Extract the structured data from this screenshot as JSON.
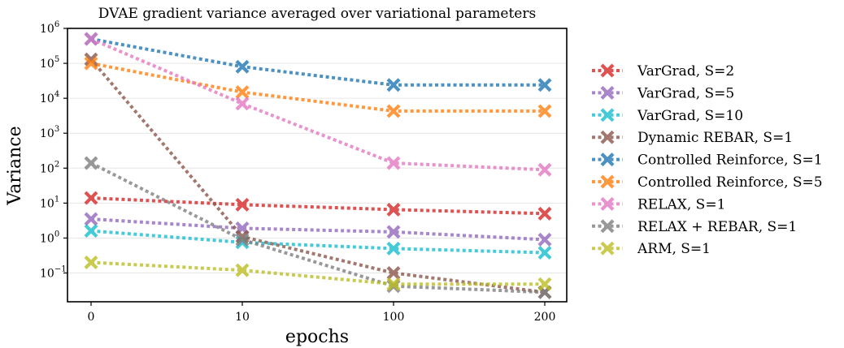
{
  "chart_data": {
    "type": "line",
    "title": "DVAE gradient variance averaged over variational parameters",
    "xlabel": "epochs",
    "ylabel": "Variance",
    "categories": [
      "0",
      "10",
      "100",
      "200"
    ],
    "y_scale": "log",
    "ylim": [
      0.015,
      1000000
    ],
    "yticks": [
      {
        "base": "10",
        "exp": "6"
      },
      {
        "base": "10",
        "exp": "5"
      },
      {
        "base": "10",
        "exp": "4"
      },
      {
        "base": "10",
        "exp": "3"
      },
      {
        "base": "10",
        "exp": "2"
      },
      {
        "base": "10",
        "exp": "1"
      },
      {
        "base": "10",
        "exp": "0"
      },
      {
        "base": "10",
        "exp": "−1"
      }
    ],
    "grid": true,
    "legend_position": "right",
    "series": [
      {
        "name": "VarGrad, S=2",
        "color": "#d62728",
        "values": [
          14,
          9,
          6.5,
          5
        ]
      },
      {
        "name": "VarGrad, S=5",
        "color": "#9467bd",
        "values": [
          3.5,
          1.9,
          1.5,
          0.9
        ]
      },
      {
        "name": "VarGrad, S=10",
        "color": "#17becf",
        "values": [
          1.6,
          0.75,
          0.5,
          0.38
        ]
      },
      {
        "name": "Dynamic REBAR, S=1",
        "color": "#8c564b",
        "values": [
          130000,
          1.1,
          0.1,
          0.028
        ]
      },
      {
        "name": "Controlled Reinforce, S=1",
        "color": "#1f77b4",
        "values": [
          500000,
          80000,
          24000,
          24000
        ]
      },
      {
        "name": "Controlled Reinforce, S=5",
        "color": "#ff7f0e",
        "values": [
          100000,
          15000,
          4300,
          4300
        ]
      },
      {
        "name": "RELAX, S=1",
        "color": "#e377c2",
        "values": [
          500000,
          7000,
          140,
          90
        ]
      },
      {
        "name": "RELAX + REBAR, S=1",
        "color": "#7f7f7f",
        "values": [
          140,
          0.9,
          0.042,
          0.028
        ]
      },
      {
        "name": "ARM, S=1",
        "color": "#bcbd22",
        "values": [
          0.2,
          0.12,
          0.048,
          0.048
        ]
      }
    ]
  }
}
